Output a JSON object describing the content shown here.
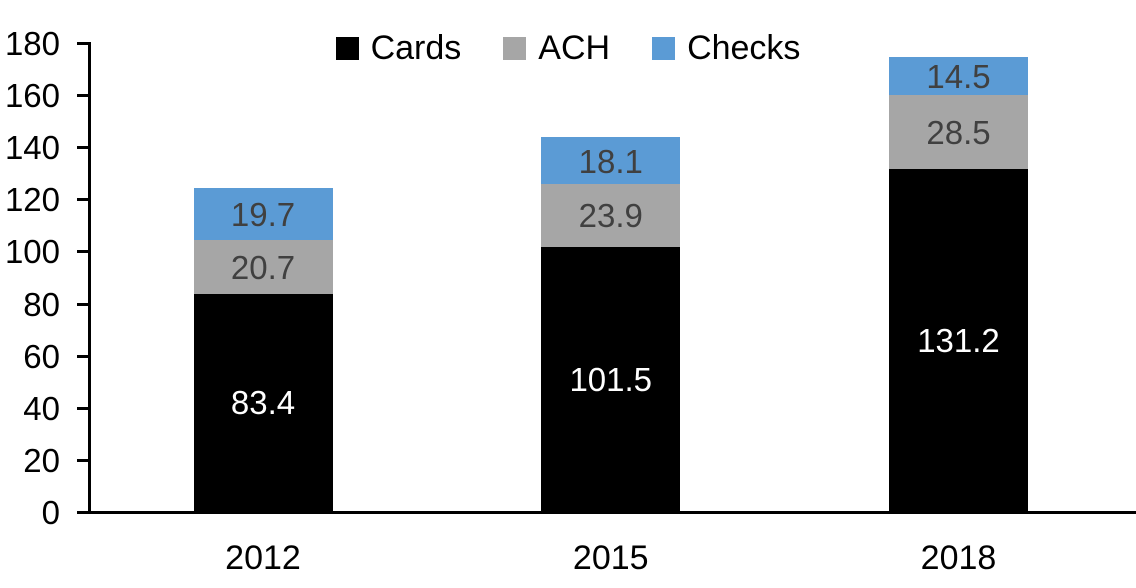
{
  "chart_data": {
    "type": "bar",
    "stacked": true,
    "title": "",
    "xlabel": "",
    "ylabel": "",
    "categories": [
      "2012",
      "2015",
      "2018"
    ],
    "series": [
      {
        "name": "Cards",
        "color": "#000000",
        "label_color": "#ffffff",
        "values": [
          83.4,
          101.5,
          131.2
        ]
      },
      {
        "name": "ACH",
        "color": "#a6a6a6",
        "label_color": "#404040",
        "values": [
          20.7,
          23.9,
          28.5
        ]
      },
      {
        "name": "Checks",
        "color": "#5b9bd5",
        "label_color": "#404040",
        "values": [
          19.7,
          18.1,
          14.5
        ]
      }
    ],
    "totals": [
      123.8,
      143.5,
      174.2
    ],
    "ylim": [
      0,
      180
    ],
    "ytick_step": 20,
    "yticks": [
      0,
      20,
      40,
      60,
      80,
      100,
      120,
      140,
      160,
      180
    ],
    "grid": false,
    "legend_position": "top",
    "axis_color": "#000000"
  }
}
